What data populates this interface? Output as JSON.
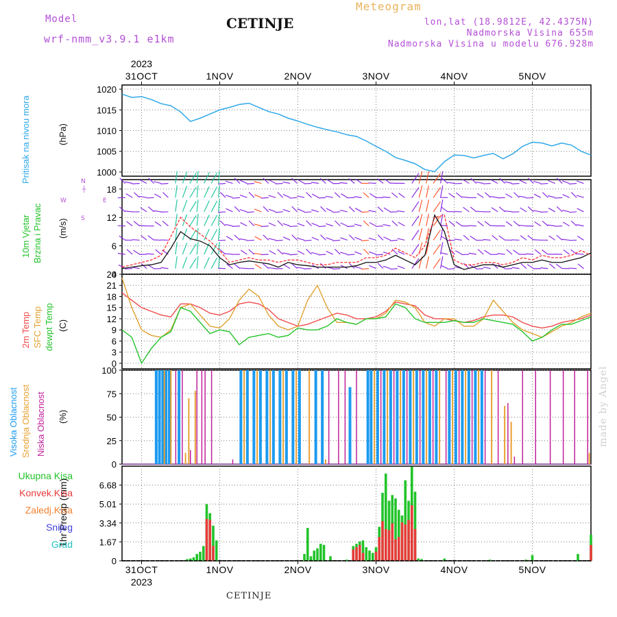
{
  "header": {
    "model_label": "Model",
    "model_name": "wrf-nmm_v3.9.1 e1km",
    "title": "CETINJE",
    "meteogram_label": "Meteogram",
    "lonlat": "lon,lat (18.9812E, 42.4375N)",
    "elevation": "Nadmorska Visina 655m",
    "model_elevation": "Nadmorska Visina u modelu 676.928m"
  },
  "footer": {
    "station": "CETINJE",
    "watermark": "made by Angel"
  },
  "time_axis": {
    "year": "2023",
    "days": [
      "31OCT",
      "1NOV",
      "2NOV",
      "3NOV",
      "4NOV",
      "5NOV"
    ],
    "start_hour_offset": -6,
    "span_hours": 144
  },
  "colors": {
    "pressure": "#2fa8e8",
    "temp2m": "#f04a4a",
    "sfc_temp": "#e0a030",
    "dewpt": "#22c32a",
    "wind_speed": "#111111",
    "wind_gust": "#ff3030",
    "wind_arrow": "#8a2be2",
    "cloud_high": "#1c9bf0",
    "cloud_mid": "#e8a030",
    "cloud_low": "#c0209a",
    "precip_total": "#22c32a",
    "precip_conv": "#e83a3a",
    "precip_frozen": "#f08030",
    "snow": "#4040e0",
    "graupel": "#20c0c0"
  },
  "panels": {
    "pressure": {
      "ylabel": "Pritisak na nivou mora",
      "unit": "(hPa)"
    },
    "wind": {
      "ylabel1": "10m Vjetar",
      "ylabel2": "Brzina i Pravac",
      "unit": "(m/s)",
      "compass": {
        "north": "N",
        "south": "S",
        "west": "W",
        "east": "E"
      }
    },
    "temp": {
      "ylabel_2m": "2m Temp",
      "ylabel_sfc": "SFC Temp",
      "ylabel_dew": "dewpt Temp",
      "unit": "(C)"
    },
    "cloud": {
      "ylabel_high": "Visoka Oblacnost",
      "ylabel_mid": "Srednja Oblacnost",
      "ylabel_low": "Niska Oblacnost",
      "unit": "(%)"
    },
    "precip": {
      "ylabel": "1hr Precip (mm)",
      "legend": [
        "Ukupna Kisa",
        "Konvek.Kisa",
        "Zaledj.Kisa",
        "Snijeg",
        "Grad"
      ]
    }
  },
  "chart_data": [
    {
      "type": "line",
      "title": "Pritisak na nivou mora",
      "ylabel": "(hPa)",
      "ylim": [
        999,
        1021
      ],
      "yticks": [
        "1000",
        "1005",
        "1010",
        "1015",
        "1020"
      ],
      "x_hours": [
        -6,
        -3,
        0,
        3,
        6,
        9,
        12,
        15,
        18,
        21,
        24,
        27,
        30,
        33,
        36,
        39,
        42,
        45,
        48,
        51,
        54,
        57,
        60,
        63,
        66,
        69,
        72,
        75,
        78,
        81,
        84,
        87,
        90,
        93,
        96,
        99,
        102,
        105,
        108,
        111,
        114,
        117,
        120,
        123,
        126,
        129,
        132,
        135,
        138
      ],
      "series": [
        {
          "name": "Pritisak na nivou mora",
          "values": [
            1018.8,
            1018.0,
            1018.2,
            1017.5,
            1016.5,
            1016.0,
            1014.5,
            1012.2,
            1013.0,
            1014.0,
            1015.0,
            1015.6,
            1016.3,
            1016.6,
            1015.6,
            1014.6,
            1014.0,
            1013.0,
            1012.3,
            1011.5,
            1010.8,
            1010.2,
            1009.7,
            1009.0,
            1008.6,
            1007.5,
            1006.2,
            1005.0,
            1003.5,
            1002.8,
            1002.0,
            1000.6,
            1000.1,
            1002.5,
            1004.1,
            1004.0,
            1003.4,
            1004.0,
            1004.5,
            1003.2,
            1004.4,
            1006.2,
            1007.2,
            1007.0,
            1006.3,
            1007.0,
            1006.5,
            1005.0,
            1004.1
          ]
        }
      ]
    },
    {
      "type": "line",
      "title": "10m Vjetar Brzina i Pravac",
      "ylabel": "(m/s)",
      "ylim": [
        0,
        20
      ],
      "yticks": [
        "0",
        "6",
        "12",
        "18"
      ],
      "x_hours": [
        -6,
        -3,
        0,
        3,
        6,
        9,
        12,
        15,
        18,
        21,
        24,
        27,
        30,
        33,
        36,
        39,
        42,
        45,
        48,
        51,
        54,
        57,
        60,
        63,
        66,
        69,
        72,
        75,
        78,
        81,
        84,
        87,
        90,
        93,
        96,
        99,
        102,
        105,
        108,
        111,
        114,
        117,
        120,
        123,
        126,
        129,
        132,
        135,
        138
      ],
      "series": [
        {
          "name": "speed",
          "values": [
            1.2,
            1.5,
            1.8,
            2.0,
            2.5,
            5.5,
            9.0,
            7.5,
            7.0,
            6.0,
            3.5,
            2.0,
            2.5,
            2.8,
            2.5,
            2.2,
            1.5,
            2.5,
            2.0,
            1.8,
            1.5,
            1.5,
            1.5,
            1.5,
            1.8,
            2.5,
            2.5,
            3.0,
            4.0,
            3.0,
            2.0,
            4.0,
            12.5,
            9.0,
            2.0,
            1.0,
            1.5,
            2.0,
            2.0,
            1.5,
            2.0,
            2.5,
            2.5,
            3.0,
            2.5,
            2.5,
            3.0,
            3.5,
            4.5
          ]
        },
        {
          "name": "gust",
          "values": [
            1.5,
            2.0,
            2.5,
            3.0,
            4.0,
            8.0,
            12.0,
            10.0,
            8.5,
            7.0,
            5.0,
            2.5,
            3.0,
            3.5,
            3.0,
            3.0,
            2.5,
            3.0,
            3.0,
            2.5,
            2.0,
            2.0,
            2.5,
            2.5,
            2.5,
            3.5,
            3.5,
            4.0,
            5.5,
            4.5,
            3.5,
            6.0,
            12.0,
            12.5,
            3.0,
            2.0,
            2.0,
            2.5,
            2.5,
            2.0,
            2.5,
            3.5,
            3.0,
            4.0,
            3.5,
            3.5,
            4.0,
            5.0,
            4.0
          ]
        }
      ],
      "arrow_rows_ms": [
        0,
        3,
        6,
        9,
        12,
        15,
        18
      ]
    },
    {
      "type": "line",
      "title": "2m Temp / SFC Temp / dewpt Temp",
      "ylabel": "(C)",
      "ylim": [
        -1.5,
        24
      ],
      "yticks": [
        "0",
        "3",
        "6",
        "9",
        "12",
        "15",
        "18",
        "21",
        "24"
      ],
      "x_hours": [
        -6,
        -3,
        0,
        3,
        6,
        9,
        12,
        15,
        18,
        21,
        24,
        27,
        30,
        33,
        36,
        39,
        42,
        45,
        48,
        51,
        54,
        57,
        60,
        63,
        66,
        69,
        72,
        75,
        78,
        81,
        84,
        87,
        90,
        93,
        96,
        99,
        102,
        105,
        108,
        111,
        114,
        117,
        120,
        123,
        126,
        129,
        132,
        135,
        138
      ],
      "series": [
        {
          "name": "2m Temp",
          "values": [
            19.0,
            17.0,
            15.0,
            14.0,
            13.0,
            12.5,
            16.0,
            16.0,
            15.0,
            13.5,
            13.0,
            14.0,
            16.0,
            16.5,
            16.0,
            14.5,
            12.0,
            11.0,
            10.0,
            10.5,
            11.5,
            12.5,
            13.5,
            13.0,
            12.0,
            12.0,
            12.5,
            14.0,
            16.5,
            16.0,
            15.5,
            13.0,
            12.0,
            12.0,
            11.5,
            11.0,
            11.5,
            12.5,
            13.0,
            13.0,
            12.5,
            11.0,
            10.0,
            9.5,
            10.0,
            11.0,
            11.5,
            12.0,
            13.0
          ]
        },
        {
          "name": "SFC Temp",
          "values": [
            23.0,
            15.0,
            9.0,
            7.5,
            7.0,
            9.0,
            15.0,
            16.0,
            13.0,
            10.0,
            9.5,
            12.0,
            17.0,
            20.0,
            18.0,
            13.0,
            10.0,
            9.0,
            10.0,
            17.0,
            21.0,
            15.0,
            11.0,
            11.0,
            10.5,
            12.0,
            12.0,
            13.5,
            17.0,
            16.5,
            15.0,
            11.0,
            10.0,
            12.0,
            12.0,
            10.0,
            10.0,
            12.0,
            17.0,
            14.0,
            11.0,
            9.0,
            8.0,
            7.0,
            8.5,
            10.0,
            11.0,
            12.5,
            13.5
          ]
        },
        {
          "name": "dewpt Temp",
          "values": [
            9.0,
            7.0,
            0.0,
            4.0,
            7.0,
            8.5,
            15.0,
            14.0,
            11.0,
            8.0,
            9.0,
            8.5,
            5.0,
            7.0,
            7.5,
            8.0,
            7.0,
            7.5,
            9.5,
            9.0,
            9.0,
            10.0,
            12.0,
            11.0,
            10.5,
            12.0,
            12.0,
            12.5,
            16.0,
            15.0,
            12.0,
            11.0,
            11.0,
            11.0,
            11.5,
            11.0,
            11.0,
            12.0,
            11.5,
            11.0,
            10.5,
            8.5,
            6.0,
            7.0,
            9.0,
            10.5,
            10.5,
            11.5,
            12.5
          ]
        }
      ]
    },
    {
      "type": "bar",
      "title": "Oblacnost",
      "ylabel": "(%)",
      "ylim": [
        0,
        100
      ],
      "yticks": [
        "0",
        "25",
        "50",
        "75",
        "100"
      ],
      "series": [
        {
          "name": "Visoka Oblacnost",
          "x_hours": [
            4.5,
            5.5,
            6.5,
            7.5,
            8.5,
            11.5,
            30.5,
            32.5,
            34.5,
            36.5,
            38.5,
            40.5,
            42.5,
            44.5,
            46.5,
            48.5,
            53.5,
            55.5,
            64.0,
            69.5,
            70.5,
            72.5,
            74.5,
            76.5,
            78.5,
            80.5,
            82.5,
            84.5,
            86.5,
            88.5,
            90.5,
            94.5,
            96.5,
            98.5,
            100.5,
            102.5,
            104.5
          ],
          "values": [
            100,
            100,
            100,
            100,
            100,
            100,
            100,
            100,
            100,
            100,
            100,
            100,
            100,
            100,
            100,
            100,
            100,
            100,
            82,
            100,
            100,
            100,
            100,
            100,
            100,
            100,
            100,
            100,
            100,
            100,
            100,
            100,
            100,
            100,
            100,
            100,
            100
          ]
        },
        {
          "name": "Srednja Oblacnost",
          "x_hours": [
            7.0,
            9.0,
            13.5,
            14.5,
            16.5,
            31.5,
            35.5,
            39.5,
            43.5,
            47.5,
            51.5,
            56.5,
            71.5,
            75.5,
            79.5,
            83.5,
            87.5,
            91.5,
            95.5,
            99.5,
            103.5,
            107.5,
            111.5,
            113.5,
            137.5
          ],
          "values": [
            100,
            100,
            12,
            70,
            78,
            100,
            100,
            100,
            100,
            100,
            100,
            5,
            100,
            100,
            100,
            100,
            100,
            100,
            100,
            100,
            100,
            100,
            62,
            45,
            12
          ]
        },
        {
          "name": "Niska Oblacnost",
          "x_hours": [
            10.5,
            12.5,
            15.0,
            17.0,
            18.5,
            19.5,
            21.5,
            28.0,
            57.5,
            60.5,
            62.5,
            66.0,
            73.5,
            77.5,
            81.5,
            85.5,
            89.5,
            93.5,
            97.5,
            101.5,
            105.5,
            109.5,
            112.5,
            114.5,
            117.0,
            121.0,
            125.5,
            129.5,
            133.0,
            137.0
          ],
          "values": [
            100,
            100,
            15,
            100,
            100,
            100,
            100,
            5,
            100,
            100,
            100,
            100,
            100,
            100,
            100,
            100,
            100,
            100,
            100,
            100,
            100,
            100,
            65,
            8,
            100,
            100,
            100,
            100,
            100,
            100
          ]
        }
      ]
    },
    {
      "type": "bar",
      "title": "1hr Precip",
      "ylabel": "1hr Precip (mm)",
      "ylim": [
        0,
        8.35
      ],
      "yticks": [
        "0",
        "1.67",
        "3.34",
        "5.01",
        "6.68"
      ],
      "series": [
        {
          "name": "Ukupna Kisa",
          "x_hours": [
            14,
            15,
            16,
            17,
            18,
            19,
            20,
            21,
            22,
            23,
            50,
            51,
            52,
            53,
            54,
            55,
            56,
            58,
            63,
            65,
            66,
            67,
            68,
            69,
            70,
            71,
            72,
            73,
            74,
            75,
            76,
            77,
            78,
            79,
            80,
            81,
            82,
            83,
            84,
            85,
            86,
            93,
            107,
            118,
            120,
            134,
            138
          ],
          "values": [
            0.15,
            0.2,
            0.3,
            0.6,
            0.8,
            1.3,
            5.0,
            4.2,
            3.1,
            1.8,
            0.6,
            2.9,
            0.4,
            0.9,
            1.1,
            1.5,
            1.4,
            0.4,
            0.1,
            1.3,
            1.5,
            1.7,
            1.8,
            1.2,
            0.9,
            0.7,
            1.2,
            3.0,
            6.0,
            7.7,
            5.3,
            5.8,
            5.5,
            4.5,
            4.0,
            7.1,
            5.3,
            8.3,
            6.1,
            0.2,
            0.15,
            0.2,
            0.1,
            0.1,
            0.5,
            0.6,
            2.3
          ]
        },
        {
          "name": "Konvek.Kisa",
          "x_hours": [
            20,
            21,
            22,
            65,
            66,
            67,
            68,
            72,
            73,
            74,
            75,
            76,
            77,
            78,
            79,
            80,
            81,
            82,
            83,
            84,
            138
          ],
          "values": [
            3.7,
            3.6,
            1.3,
            1.0,
            1.2,
            1.4,
            0.7,
            0.8,
            2.1,
            3.5,
            2.8,
            2.7,
            3.3,
            1.9,
            2.1,
            3.4,
            3.2,
            3.6,
            4.9,
            2.8,
            1.4
          ]
        }
      ]
    }
  ]
}
